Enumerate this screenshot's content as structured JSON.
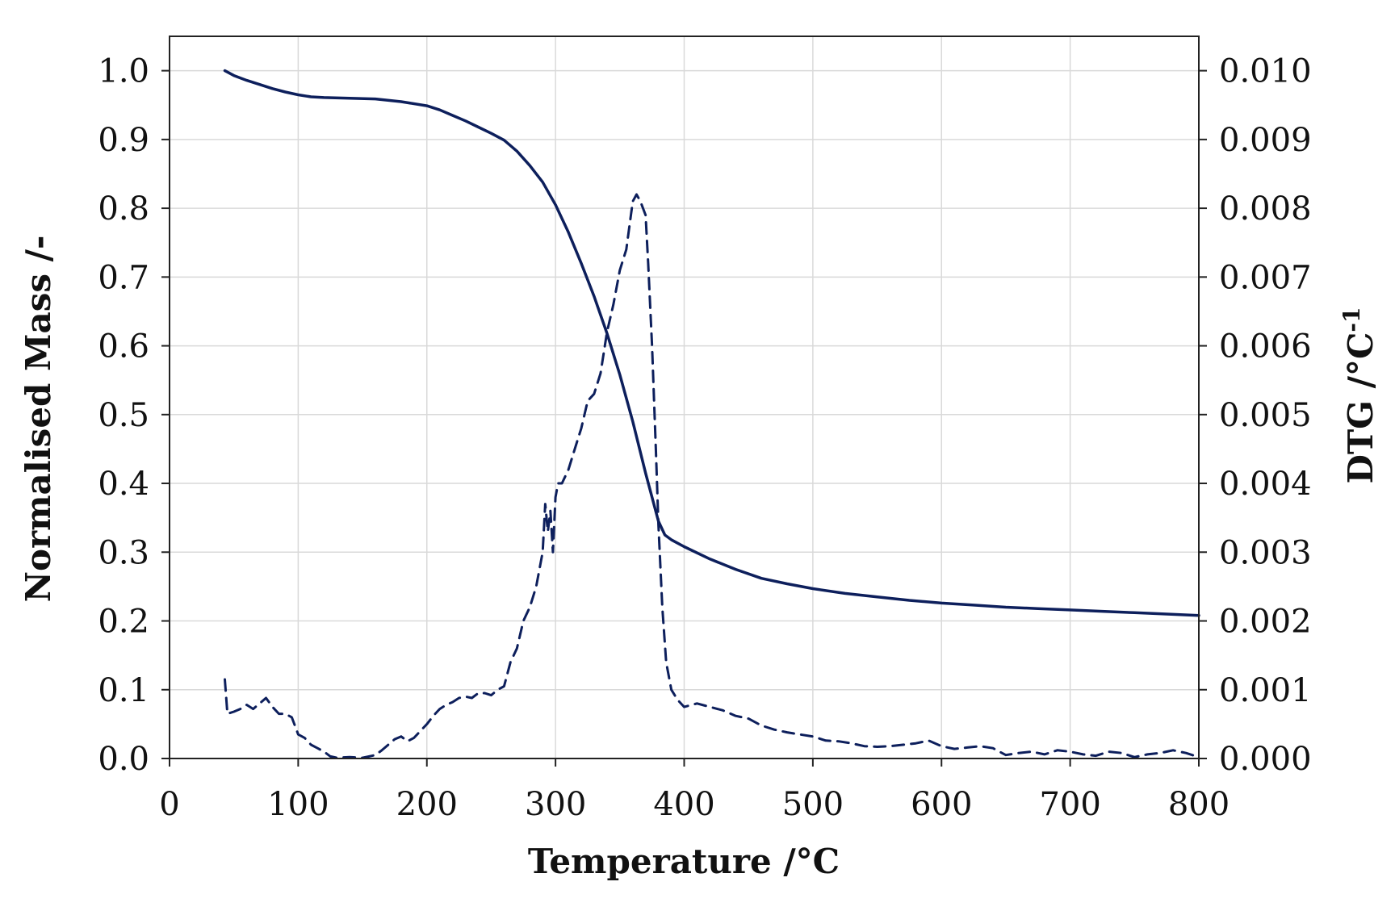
{
  "chart_data": {
    "type": "line",
    "title": "",
    "xlabel": "Temperature /°C",
    "ylabel": "Normalised Mass /-",
    "y2label": "DTG /°C",
    "y2label_superscript": "-1",
    "xlim": [
      0,
      800
    ],
    "ylim": [
      0,
      1.05
    ],
    "y2lim": [
      0,
      0.0105
    ],
    "xticks": [
      "0",
      "100",
      "200",
      "300",
      "400",
      "500",
      "600",
      "700",
      "800"
    ],
    "yticks": [
      "0.0",
      "0.1",
      "0.2",
      "0.3",
      "0.4",
      "0.5",
      "0.6",
      "0.7",
      "0.8",
      "0.9",
      "1.0"
    ],
    "y2ticks": [
      "0.000",
      "0.001",
      "0.002",
      "0.003",
      "0.004",
      "0.005",
      "0.006",
      "0.007",
      "0.008",
      "0.009",
      "0.010"
    ],
    "grid": true,
    "line_color": "#0d1f5c",
    "series": [
      {
        "style": "solid",
        "axis": "left",
        "x": [
          43,
          50,
          60,
          70,
          80,
          90,
          100,
          110,
          120,
          140,
          160,
          180,
          200,
          210,
          220,
          230,
          240,
          250,
          260,
          270,
          280,
          290,
          300,
          310,
          320,
          330,
          340,
          350,
          360,
          370,
          380,
          385,
          390,
          400,
          420,
          440,
          460,
          480,
          500,
          525,
          550,
          575,
          600,
          625,
          650,
          675,
          700,
          725,
          750,
          775,
          800
        ],
        "y": [
          1.0,
          0.993,
          0.986,
          0.98,
          0.974,
          0.969,
          0.965,
          0.962,
          0.961,
          0.96,
          0.959,
          0.955,
          0.949,
          0.943,
          0.935,
          0.927,
          0.918,
          0.909,
          0.899,
          0.883,
          0.862,
          0.838,
          0.805,
          0.765,
          0.72,
          0.672,
          0.618,
          0.558,
          0.49,
          0.415,
          0.345,
          0.325,
          0.318,
          0.308,
          0.29,
          0.275,
          0.262,
          0.254,
          0.247,
          0.24,
          0.235,
          0.23,
          0.226,
          0.223,
          0.22,
          0.218,
          0.216,
          0.214,
          0.212,
          0.21,
          0.208
        ]
      },
      {
        "style": "dashed",
        "axis": "right",
        "x": [
          43,
          45,
          50,
          55,
          60,
          65,
          70,
          75,
          80,
          85,
          90,
          95,
          100,
          105,
          110,
          115,
          120,
          125,
          130,
          140,
          150,
          160,
          165,
          170,
          175,
          180,
          185,
          190,
          195,
          200,
          205,
          210,
          215,
          220,
          225,
          230,
          235,
          240,
          245,
          250,
          255,
          260,
          265,
          270,
          275,
          280,
          285,
          290,
          292,
          294,
          296,
          298,
          300,
          302,
          305,
          310,
          315,
          320,
          325,
          330,
          335,
          340,
          345,
          350,
          355,
          360,
          363,
          366,
          370,
          372,
          375,
          378,
          380,
          383,
          386,
          390,
          395,
          400,
          410,
          420,
          430,
          440,
          450,
          460,
          470,
          480,
          490,
          500,
          510,
          520,
          530,
          540,
          550,
          560,
          570,
          580,
          590,
          600,
          610,
          620,
          630,
          640,
          650,
          660,
          670,
          680,
          690,
          700,
          710,
          720,
          730,
          740,
          750,
          760,
          770,
          780,
          790,
          800
        ],
        "y": [
          0.00115,
          0.00065,
          0.00068,
          0.00072,
          0.00078,
          0.00072,
          0.0008,
          0.00088,
          0.00075,
          0.00065,
          0.00065,
          0.0006,
          0.00035,
          0.0003,
          0.0002,
          0.00015,
          0.0001,
          3e-05,
          1e-05,
          2e-05,
          1e-05,
          5e-05,
          0.00012,
          0.0002,
          0.00028,
          0.00032,
          0.00025,
          0.0003,
          0.0004,
          0.0005,
          0.00062,
          0.00072,
          0.00078,
          0.00082,
          0.00088,
          0.0009,
          0.00088,
          0.00095,
          0.00095,
          0.00092,
          0.001,
          0.00105,
          0.0014,
          0.0016,
          0.002,
          0.0022,
          0.0025,
          0.003,
          0.0037,
          0.0033,
          0.0036,
          0.003,
          0.0038,
          0.004,
          0.004,
          0.0042,
          0.0045,
          0.0048,
          0.0052,
          0.0053,
          0.0056,
          0.0062,
          0.0066,
          0.0071,
          0.0074,
          0.0081,
          0.0082,
          0.0081,
          0.0079,
          0.0072,
          0.006,
          0.0045,
          0.0034,
          0.0022,
          0.0014,
          0.001,
          0.00085,
          0.00075,
          0.0008,
          0.00075,
          0.0007,
          0.00062,
          0.00058,
          0.00048,
          0.00042,
          0.00038,
          0.00035,
          0.00032,
          0.00026,
          0.00025,
          0.00022,
          0.00018,
          0.00017,
          0.00018,
          0.0002,
          0.00022,
          0.00026,
          0.00018,
          0.00014,
          0.00016,
          0.00018,
          0.00015,
          5e-05,
          8e-05,
          0.0001,
          6e-05,
          0.00012,
          0.0001,
          6e-05,
          4e-05,
          0.0001,
          8e-05,
          2e-05,
          6e-05,
          8e-05,
          0.00012,
          8e-05,
          2e-05
        ]
      }
    ]
  }
}
